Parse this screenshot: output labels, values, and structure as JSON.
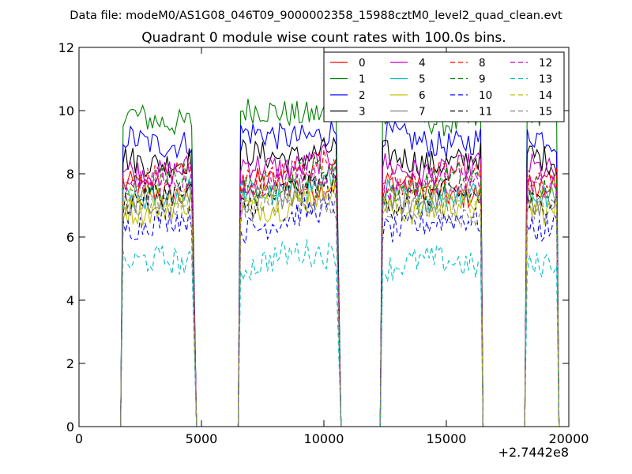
{
  "figure": {
    "header": "Data file: modeM0/AS1G08_046T09_9000002358_15988cztM0_level2_quad_clean.evt"
  },
  "chart_data": {
    "type": "line",
    "title": "Quadrant 0 module wise count rates with 100.0s bins.",
    "xlabel": "",
    "ylabel": "",
    "x_offset_label": "+2.7442e8",
    "xlim": [
      0,
      20000
    ],
    "ylim": [
      0,
      12
    ],
    "x_ticks": [
      0,
      5000,
      10000,
      15000,
      20000
    ],
    "x_tick_labels": [
      "0",
      "5000",
      "10000",
      "15000",
      "20000"
    ],
    "y_ticks": [
      0,
      2,
      4,
      6,
      8,
      10,
      12
    ],
    "y_tick_labels": [
      "0",
      "2",
      "4",
      "6",
      "8",
      "10",
      "12"
    ],
    "grid": false,
    "legend_position": "top-right",
    "legend_columns": 4,
    "segments": [
      {
        "x_start": 1800,
        "x_end": 4600,
        "drop_to": 4800
      },
      {
        "x_start": 6600,
        "x_end": 10500,
        "drop_to": 10700
      },
      {
        "x_start": 12400,
        "x_end": 16400,
        "drop_to": 16500
      },
      {
        "x_start": 18300,
        "x_end": 19500,
        "drop_to": 19600
      }
    ],
    "zero_gaps": [
      [
        4800,
        6500
      ],
      [
        10700,
        12300
      ],
      [
        16500,
        18200
      ]
    ],
    "series": [
      {
        "name": "0",
        "color": "#ff0000",
        "dash": "solid",
        "level": 7.5
      },
      {
        "name": "1",
        "color": "#008000",
        "dash": "solid",
        "level": 9.8
      },
      {
        "name": "2",
        "color": "#0000ff",
        "dash": "solid",
        "level": 9.1
      },
      {
        "name": "3",
        "color": "#000000",
        "dash": "solid",
        "level": 8.5
      },
      {
        "name": "4",
        "color": "#bf00bf",
        "dash": "solid",
        "level": 8.2
      },
      {
        "name": "5",
        "color": "#00bfbf",
        "dash": "solid",
        "level": 7.4
      },
      {
        "name": "6",
        "color": "#bfbf00",
        "dash": "solid",
        "level": 7.0
      },
      {
        "name": "7",
        "color": "#808080",
        "dash": "solid",
        "level": 7.3
      },
      {
        "name": "8",
        "color": "#ff0000",
        "dash": "dashed",
        "level": 7.9
      },
      {
        "name": "9",
        "color": "#008000",
        "dash": "dashed",
        "level": 7.7
      },
      {
        "name": "10",
        "color": "#0000ff",
        "dash": "dashed",
        "level": 6.4
      },
      {
        "name": "11",
        "color": "#000000",
        "dash": "dashed",
        "level": 7.2
      },
      {
        "name": "12",
        "color": "#bf00bf",
        "dash": "dashed",
        "level": 7.6
      },
      {
        "name": "13",
        "color": "#00bfbf",
        "dash": "dashed",
        "level": 5.1
      },
      {
        "name": "14",
        "color": "#bfbf00",
        "dash": "dashed",
        "level": 7.1
      },
      {
        "name": "15",
        "color": "#808080",
        "dash": "dashed",
        "level": 6.8
      }
    ]
  }
}
